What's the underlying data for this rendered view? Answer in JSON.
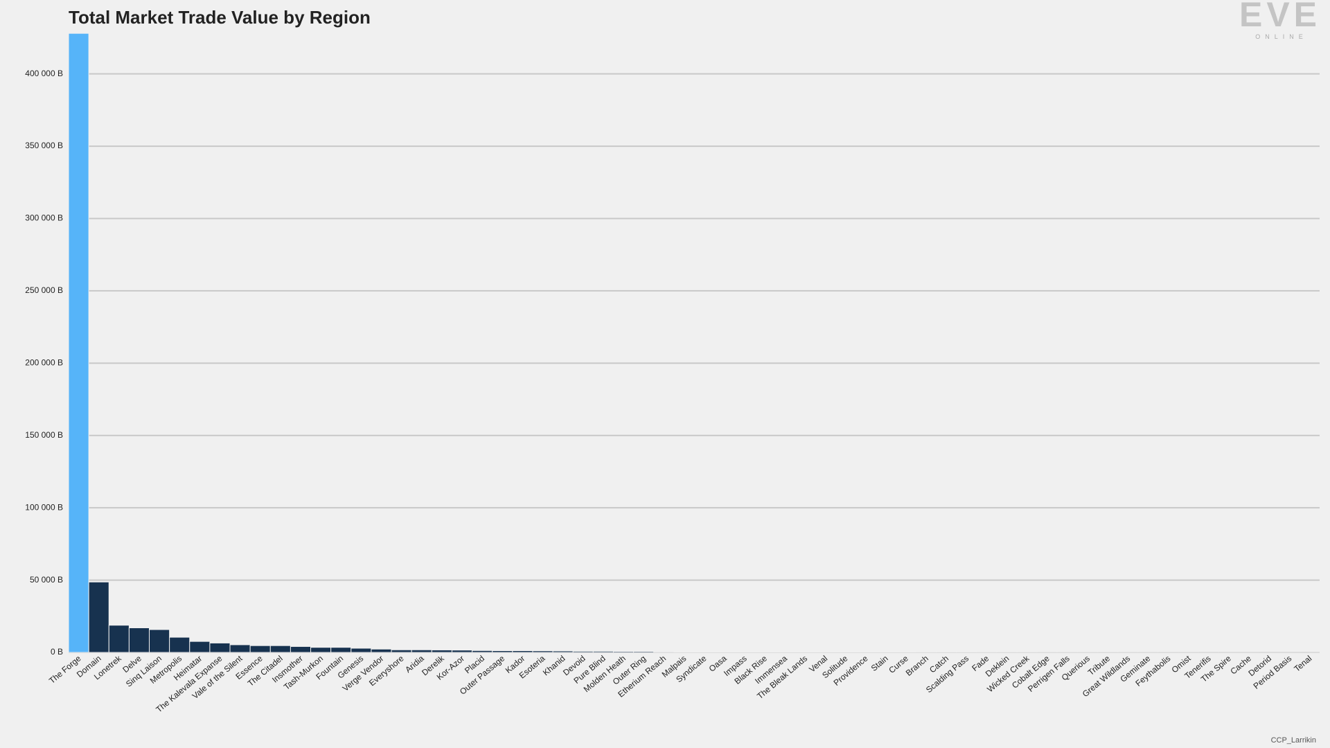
{
  "chart_data": {
    "type": "bar",
    "title": "Total Market Trade Value by Region",
    "categories": [
      "The Forge",
      "Domain",
      "Lonetrek",
      "Delve",
      "Sinq Laison",
      "Metropolis",
      "Heimatar",
      "The Kalevala Expanse",
      "Vale of the Silent",
      "Essence",
      "The Citadel",
      "Insmother",
      "Tash-Murkon",
      "Fountain",
      "Genesis",
      "Verge Vendor",
      "Everyshore",
      "Aridia",
      "Derelik",
      "Kor-Azor",
      "Placid",
      "Outer Passage",
      "Kador",
      "Esoteria",
      "Khanid",
      "Devoid",
      "Pure Blind",
      "Molden Heath",
      "Outer Ring",
      "Etherium Reach",
      "Malpais",
      "Syndicate",
      "Oasa",
      "Impass",
      "Black Rise",
      "Immensea",
      "The Bleak Lands",
      "Venal",
      "Solitude",
      "Providence",
      "Stain",
      "Curse",
      "Branch",
      "Catch",
      "Scalding Pass",
      "Fade",
      "Deklein",
      "Wicked Creek",
      "Cobalt Edge",
      "Perrigen Falls",
      "Querious",
      "Tribute",
      "Great Wildlands",
      "Geminate",
      "Feythabolis",
      "Omist",
      "Tenerifis",
      "The Spire",
      "Cache",
      "Detorid",
      "Period Basis",
      "Tenal"
    ],
    "values": [
      428000,
      48700,
      18800,
      17000,
      15800,
      10500,
      7600,
      6500,
      5300,
      4700,
      4700,
      4100,
      3500,
      3500,
      2900,
      2300,
      1800,
      1800,
      1700,
      1600,
      1300,
      1200,
      1200,
      1100,
      1000,
      800,
      800,
      700,
      700,
      500,
      450,
      420,
      400,
      380,
      350,
      330,
      310,
      290,
      270,
      250,
      240,
      230,
      220,
      200,
      190,
      180,
      170,
      160,
      150,
      140,
      120,
      110,
      100,
      90,
      80,
      70,
      60,
      50,
      40,
      30,
      20,
      10
    ],
    "colors": [
      "#56b4f9",
      "#17324f"
    ],
    "ylim": [
      0,
      430000
    ],
    "yticks": [
      {
        "value": 0,
        "label": "0 B"
      },
      {
        "value": 50000,
        "label": "50 000 B"
      },
      {
        "value": 100000,
        "label": "100 000 B"
      },
      {
        "value": 150000,
        "label": "150 000 B"
      },
      {
        "value": 200000,
        "label": "200 000 B"
      },
      {
        "value": 250000,
        "label": "250 000 B"
      },
      {
        "value": 300000,
        "label": "300 000 B"
      },
      {
        "value": 350000,
        "label": "350 000 B"
      },
      {
        "value": 400000,
        "label": "400 000 B"
      }
    ],
    "grid": true
  },
  "logo": "EVE",
  "logo_subtitle": "ONLINE",
  "credit": "CCP_Larrikin"
}
